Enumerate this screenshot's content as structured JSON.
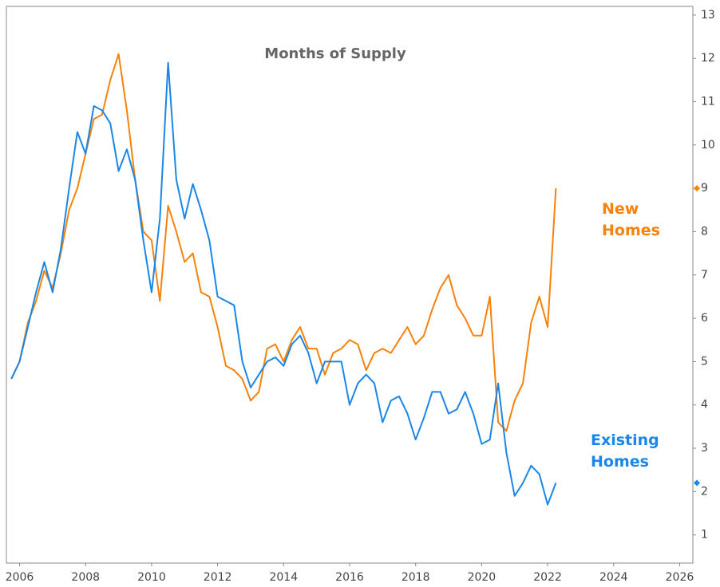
{
  "chart_data": {
    "type": "line",
    "title": "Months of Supply",
    "x": [
      2005.75,
      2006,
      2006.25,
      2006.5,
      2006.75,
      2007,
      2007.25,
      2007.5,
      2007.75,
      2008,
      2008.25,
      2008.5,
      2008.75,
      2009,
      2009.25,
      2009.5,
      2009.75,
      2010,
      2010.25,
      2010.5,
      2010.75,
      2011,
      2011.25,
      2011.5,
      2011.75,
      2012,
      2012.25,
      2012.5,
      2012.75,
      2013,
      2013.25,
      2013.5,
      2013.75,
      2014,
      2014.25,
      2014.5,
      2014.75,
      2015,
      2015.25,
      2015.5,
      2015.75,
      2016,
      2016.25,
      2016.5,
      2016.75,
      2017,
      2017.25,
      2017.5,
      2017.75,
      2018,
      2018.25,
      2018.5,
      2018.75,
      2019,
      2019.25,
      2019.5,
      2019.75,
      2020,
      2020.25,
      2020.5,
      2020.75,
      2021,
      2021.25,
      2021.5,
      2021.75,
      2022,
      2022.25
    ],
    "series": [
      {
        "name": "New Homes",
        "color": "#f5820a",
        "values": [
          4.6,
          5.0,
          5.9,
          6.4,
          7.1,
          6.7,
          7.5,
          8.5,
          9.0,
          9.8,
          10.6,
          10.7,
          11.5,
          12.1,
          10.8,
          9.2,
          8.0,
          7.8,
          6.4,
          8.6,
          8.0,
          7.3,
          7.5,
          6.6,
          6.5,
          5.8,
          4.9,
          4.8,
          4.6,
          4.1,
          4.3,
          5.3,
          5.4,
          5.0,
          5.5,
          5.8,
          5.3,
          5.3,
          4.7,
          5.2,
          5.3,
          5.5,
          5.4,
          4.8,
          5.2,
          5.3,
          5.2,
          5.5,
          5.8,
          5.4,
          5.6,
          6.2,
          6.7,
          7.0,
          6.3,
          6.0,
          5.6,
          5.6,
          6.5,
          3.6,
          3.4,
          4.1,
          4.5,
          5.9,
          6.5,
          5.8,
          9.0
        ]
      },
      {
        "name": "Existing Homes",
        "color": "#1a86e8",
        "values": [
          4.6,
          5.0,
          5.8,
          6.6,
          7.3,
          6.6,
          7.6,
          9.0,
          10.3,
          9.8,
          10.9,
          10.8,
          10.5,
          9.4,
          9.9,
          9.2,
          7.8,
          6.6,
          8.3,
          11.9,
          9.2,
          8.3,
          9.1,
          8.5,
          7.8,
          6.5,
          6.4,
          6.3,
          5.0,
          4.4,
          4.7,
          5.0,
          5.1,
          4.9,
          5.4,
          5.6,
          5.2,
          4.5,
          5.0,
          5.0,
          5.0,
          4.0,
          4.5,
          4.7,
          4.5,
          3.6,
          4.1,
          4.2,
          3.8,
          3.2,
          3.7,
          4.3,
          4.3,
          3.8,
          3.9,
          4.3,
          3.8,
          3.1,
          3.2,
          4.5,
          2.9,
          1.9,
          2.2,
          2.6,
          2.4,
          1.7,
          2.2
        ]
      }
    ],
    "xlim": [
      2005.6,
      2026.4
    ],
    "xticks": [
      2006,
      2008,
      2010,
      2012,
      2014,
      2016,
      2018,
      2020,
      2022,
      2024,
      2026
    ],
    "ylim": [
      0.35,
      13.2
    ],
    "yticks": [
      1,
      2,
      3,
      4,
      5,
      6,
      7,
      8,
      9,
      10,
      11,
      12,
      13
    ],
    "y_axis_side": "right",
    "grid": false
  }
}
